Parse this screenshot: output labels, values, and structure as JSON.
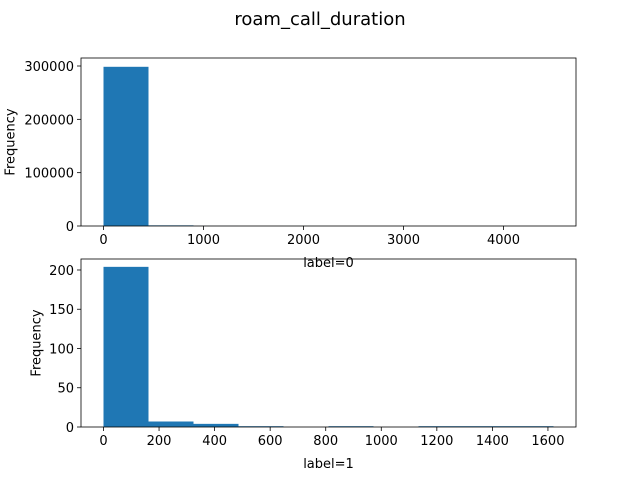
{
  "title": "roam_call_duration",
  "colors": {
    "bar": "#1f77b4",
    "axis": "#000000",
    "background": "#ffffff"
  },
  "chart_data": [
    {
      "type": "bar",
      "subtype": "histogram",
      "xlabel": "label=0",
      "ylabel": "Frequency",
      "xlim": [
        -225,
        4725
      ],
      "ylim": [
        0,
        315000
      ],
      "xticks": [
        0,
        1000,
        2000,
        3000,
        4000
      ],
      "yticks": [
        0,
        100000,
        200000,
        300000
      ],
      "bin_edges": [
        0,
        450,
        900,
        1350,
        1800,
        2250,
        2700,
        3150,
        3600,
        4050,
        4500
      ],
      "values": [
        298500,
        1200,
        150,
        50,
        20,
        10,
        5,
        3,
        2,
        1
      ],
      "grid": false
    },
    {
      "type": "bar",
      "subtype": "histogram",
      "xlabel": "label=1",
      "ylabel": "Frequency",
      "xlim": [
        -81,
        1701
      ],
      "ylim": [
        0,
        214
      ],
      "xticks": [
        0,
        200,
        400,
        600,
        800,
        1000,
        1200,
        1400,
        1600
      ],
      "yticks": [
        0,
        50,
        100,
        150,
        200
      ],
      "bin_edges": [
        0,
        162,
        324,
        486,
        648,
        810,
        972,
        1134,
        1296,
        1458,
        1620
      ],
      "values": [
        204,
        7,
        4,
        1,
        0,
        1,
        0,
        1,
        1,
        1
      ],
      "grid": false
    }
  ]
}
